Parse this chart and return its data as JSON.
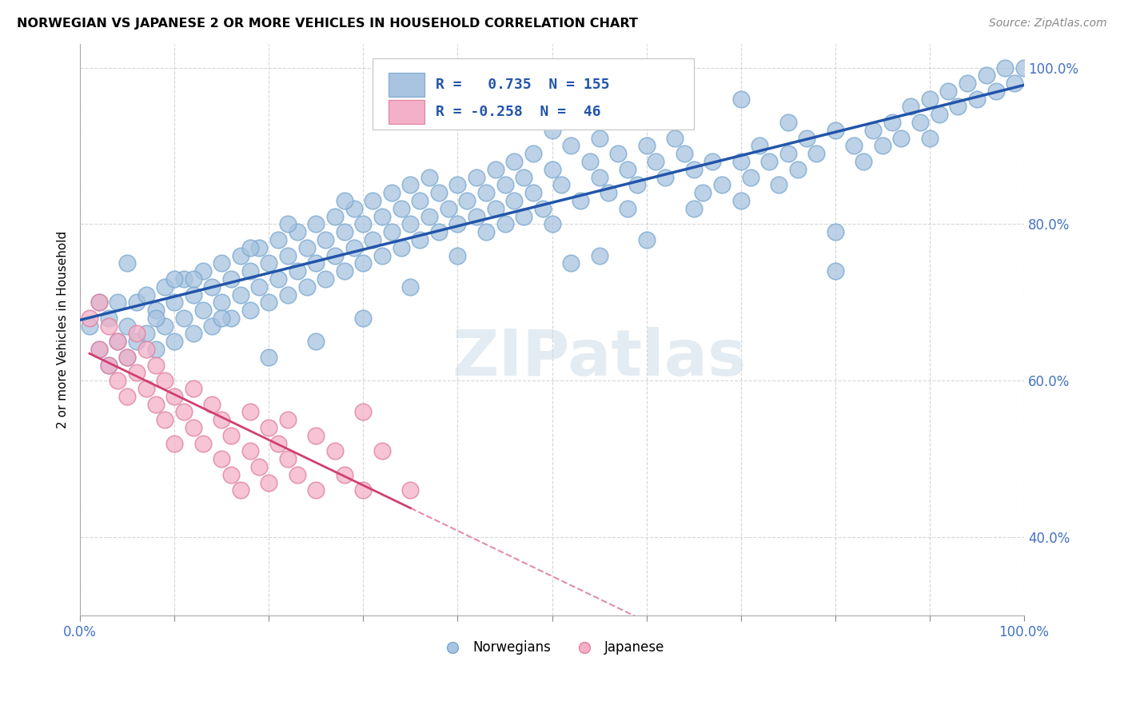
{
  "title": "NORWEGIAN VS JAPANESE 2 OR MORE VEHICLES IN HOUSEHOLD CORRELATION CHART",
  "source": "Source: ZipAtlas.com",
  "ylabel": "2 or more Vehicles in Household",
  "xlim": [
    0.0,
    1.0
  ],
  "ylim": [
    0.3,
    1.03
  ],
  "y_ticks": [
    0.4,
    0.6,
    0.8,
    1.0
  ],
  "y_tick_labels": [
    "40.0%",
    "60.0%",
    "80.0%",
    "100.0%"
  ],
  "norwegian_color": "#a8c4e0",
  "norwegian_edge_color": "#7aa8d0",
  "japanese_color": "#f4b0c8",
  "japanese_edge_color": "#e080a0",
  "norwegian_line_color": "#2255aa",
  "japanese_line_color": "#d04070",
  "R_norwegian": 0.735,
  "N_norwegian": 155,
  "R_japanese": -0.258,
  "N_japanese": 46,
  "watermark_text": "ZIPatlas",
  "norwegian_points": [
    [
      0.01,
      0.67
    ],
    [
      0.02,
      0.64
    ],
    [
      0.02,
      0.7
    ],
    [
      0.03,
      0.62
    ],
    [
      0.03,
      0.68
    ],
    [
      0.04,
      0.65
    ],
    [
      0.04,
      0.7
    ],
    [
      0.05,
      0.63
    ],
    [
      0.05,
      0.67
    ],
    [
      0.06,
      0.65
    ],
    [
      0.06,
      0.7
    ],
    [
      0.07,
      0.66
    ],
    [
      0.07,
      0.71
    ],
    [
      0.08,
      0.64
    ],
    [
      0.08,
      0.69
    ],
    [
      0.09,
      0.67
    ],
    [
      0.09,
      0.72
    ],
    [
      0.1,
      0.65
    ],
    [
      0.1,
      0.7
    ],
    [
      0.11,
      0.68
    ],
    [
      0.11,
      0.73
    ],
    [
      0.12,
      0.66
    ],
    [
      0.12,
      0.71
    ],
    [
      0.13,
      0.69
    ],
    [
      0.13,
      0.74
    ],
    [
      0.14,
      0.67
    ],
    [
      0.14,
      0.72
    ],
    [
      0.15,
      0.7
    ],
    [
      0.15,
      0.75
    ],
    [
      0.16,
      0.68
    ],
    [
      0.16,
      0.73
    ],
    [
      0.17,
      0.71
    ],
    [
      0.17,
      0.76
    ],
    [
      0.18,
      0.69
    ],
    [
      0.18,
      0.74
    ],
    [
      0.19,
      0.72
    ],
    [
      0.19,
      0.77
    ],
    [
      0.2,
      0.7
    ],
    [
      0.2,
      0.75
    ],
    [
      0.21,
      0.73
    ],
    [
      0.21,
      0.78
    ],
    [
      0.22,
      0.71
    ],
    [
      0.22,
      0.76
    ],
    [
      0.23,
      0.74
    ],
    [
      0.23,
      0.79
    ],
    [
      0.24,
      0.72
    ],
    [
      0.24,
      0.77
    ],
    [
      0.25,
      0.75
    ],
    [
      0.25,
      0.8
    ],
    [
      0.26,
      0.73
    ],
    [
      0.26,
      0.78
    ],
    [
      0.27,
      0.76
    ],
    [
      0.27,
      0.81
    ],
    [
      0.28,
      0.74
    ],
    [
      0.28,
      0.79
    ],
    [
      0.29,
      0.77
    ],
    [
      0.29,
      0.82
    ],
    [
      0.3,
      0.75
    ],
    [
      0.3,
      0.8
    ],
    [
      0.31,
      0.78
    ],
    [
      0.31,
      0.83
    ],
    [
      0.32,
      0.76
    ],
    [
      0.32,
      0.81
    ],
    [
      0.33,
      0.79
    ],
    [
      0.33,
      0.84
    ],
    [
      0.34,
      0.77
    ],
    [
      0.34,
      0.82
    ],
    [
      0.35,
      0.8
    ],
    [
      0.35,
      0.85
    ],
    [
      0.36,
      0.78
    ],
    [
      0.36,
      0.83
    ],
    [
      0.37,
      0.81
    ],
    [
      0.37,
      0.86
    ],
    [
      0.38,
      0.79
    ],
    [
      0.38,
      0.84
    ],
    [
      0.39,
      0.82
    ],
    [
      0.4,
      0.8
    ],
    [
      0.4,
      0.85
    ],
    [
      0.41,
      0.83
    ],
    [
      0.42,
      0.81
    ],
    [
      0.42,
      0.86
    ],
    [
      0.43,
      0.84
    ],
    [
      0.43,
      0.79
    ],
    [
      0.44,
      0.82
    ],
    [
      0.44,
      0.87
    ],
    [
      0.45,
      0.8
    ],
    [
      0.45,
      0.85
    ],
    [
      0.46,
      0.83
    ],
    [
      0.46,
      0.88
    ],
    [
      0.47,
      0.81
    ],
    [
      0.47,
      0.86
    ],
    [
      0.48,
      0.84
    ],
    [
      0.48,
      0.89
    ],
    [
      0.49,
      0.82
    ],
    [
      0.5,
      0.87
    ],
    [
      0.5,
      0.92
    ],
    [
      0.51,
      0.85
    ],
    [
      0.52,
      0.9
    ],
    [
      0.52,
      0.75
    ],
    [
      0.53,
      0.83
    ],
    [
      0.54,
      0.88
    ],
    [
      0.55,
      0.86
    ],
    [
      0.55,
      0.91
    ],
    [
      0.56,
      0.84
    ],
    [
      0.57,
      0.89
    ],
    [
      0.58,
      0.87
    ],
    [
      0.58,
      0.82
    ],
    [
      0.59,
      0.85
    ],
    [
      0.6,
      0.9
    ],
    [
      0.6,
      0.78
    ],
    [
      0.61,
      0.88
    ],
    [
      0.62,
      0.86
    ],
    [
      0.63,
      0.91
    ],
    [
      0.64,
      0.89
    ],
    [
      0.65,
      0.87
    ],
    [
      0.66,
      0.84
    ],
    [
      0.67,
      0.88
    ],
    [
      0.68,
      0.85
    ],
    [
      0.7,
      0.83
    ],
    [
      0.7,
      0.88
    ],
    [
      0.71,
      0.86
    ],
    [
      0.72,
      0.9
    ],
    [
      0.73,
      0.88
    ],
    [
      0.74,
      0.85
    ],
    [
      0.75,
      0.89
    ],
    [
      0.76,
      0.87
    ],
    [
      0.77,
      0.91
    ],
    [
      0.78,
      0.89
    ],
    [
      0.8,
      0.74
    ],
    [
      0.8,
      0.92
    ],
    [
      0.82,
      0.9
    ],
    [
      0.83,
      0.88
    ],
    [
      0.84,
      0.92
    ],
    [
      0.85,
      0.9
    ],
    [
      0.86,
      0.93
    ],
    [
      0.87,
      0.91
    ],
    [
      0.88,
      0.95
    ],
    [
      0.89,
      0.93
    ],
    [
      0.9,
      0.91
    ],
    [
      0.9,
      0.96
    ],
    [
      0.91,
      0.94
    ],
    [
      0.92,
      0.97
    ],
    [
      0.93,
      0.95
    ],
    [
      0.94,
      0.98
    ],
    [
      0.95,
      0.96
    ],
    [
      0.96,
      0.99
    ],
    [
      0.97,
      0.97
    ],
    [
      0.98,
      1.0
    ],
    [
      0.99,
      0.98
    ],
    [
      1.0,
      1.0
    ],
    [
      0.6,
      0.94
    ],
    [
      0.65,
      0.82
    ],
    [
      0.7,
      0.96
    ],
    [
      0.75,
      0.93
    ],
    [
      0.8,
      0.79
    ],
    [
      0.5,
      0.8
    ],
    [
      0.55,
      0.76
    ],
    [
      0.4,
      0.76
    ],
    [
      0.35,
      0.72
    ],
    [
      0.3,
      0.68
    ],
    [
      0.25,
      0.65
    ],
    [
      0.2,
      0.63
    ],
    [
      0.15,
      0.68
    ],
    [
      0.1,
      0.73
    ],
    [
      0.05,
      0.75
    ],
    [
      0.08,
      0.68
    ],
    [
      0.12,
      0.73
    ],
    [
      0.18,
      0.77
    ],
    [
      0.22,
      0.8
    ],
    [
      0.28,
      0.83
    ]
  ],
  "japanese_points": [
    [
      0.01,
      0.68
    ],
    [
      0.02,
      0.64
    ],
    [
      0.02,
      0.7
    ],
    [
      0.03,
      0.62
    ],
    [
      0.03,
      0.67
    ],
    [
      0.04,
      0.6
    ],
    [
      0.04,
      0.65
    ],
    [
      0.05,
      0.58
    ],
    [
      0.05,
      0.63
    ],
    [
      0.06,
      0.61
    ],
    [
      0.06,
      0.66
    ],
    [
      0.07,
      0.59
    ],
    [
      0.07,
      0.64
    ],
    [
      0.08,
      0.57
    ],
    [
      0.08,
      0.62
    ],
    [
      0.09,
      0.6
    ],
    [
      0.09,
      0.55
    ],
    [
      0.1,
      0.58
    ],
    [
      0.1,
      0.52
    ],
    [
      0.11,
      0.56
    ],
    [
      0.12,
      0.54
    ],
    [
      0.12,
      0.59
    ],
    [
      0.13,
      0.52
    ],
    [
      0.14,
      0.57
    ],
    [
      0.15,
      0.55
    ],
    [
      0.15,
      0.5
    ],
    [
      0.16,
      0.53
    ],
    [
      0.16,
      0.48
    ],
    [
      0.17,
      0.46
    ],
    [
      0.18,
      0.51
    ],
    [
      0.18,
      0.56
    ],
    [
      0.19,
      0.49
    ],
    [
      0.2,
      0.54
    ],
    [
      0.2,
      0.47
    ],
    [
      0.21,
      0.52
    ],
    [
      0.22,
      0.5
    ],
    [
      0.22,
      0.55
    ],
    [
      0.23,
      0.48
    ],
    [
      0.25,
      0.53
    ],
    [
      0.25,
      0.46
    ],
    [
      0.27,
      0.51
    ],
    [
      0.28,
      0.48
    ],
    [
      0.3,
      0.56
    ],
    [
      0.3,
      0.46
    ],
    [
      0.32,
      0.51
    ],
    [
      0.35,
      0.46
    ]
  ]
}
